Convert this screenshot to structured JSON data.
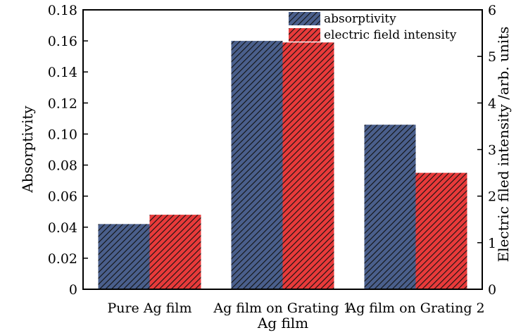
{
  "chart_data": {
    "type": "bar",
    "categories": [
      "Pure Ag film",
      "Ag film on Grating 1",
      "Ag film on Grating 2"
    ],
    "series": [
      {
        "name": "absorptivity",
        "axis": "left",
        "values": [
          0.042,
          0.16,
          0.106
        ],
        "color": "#4a5f8c"
      },
      {
        "name": "electric field intensity",
        "axis": "right",
        "values": [
          1.6,
          5.3,
          2.5
        ],
        "color": "#e83a3a"
      }
    ],
    "xlabel": "Ag film",
    "ylabel": "Absorptivity",
    "y2label": "Electric filed intensity /arb. units",
    "ylim": [
      0,
      0.18
    ],
    "y2lim": [
      0,
      6
    ],
    "yticks": [
      "0",
      "0.02",
      "0.04",
      "0.06",
      "0.08",
      "0.10",
      "0.12",
      "0.14",
      "0.16",
      "0.18"
    ],
    "y2ticks": [
      "0",
      "1",
      "2",
      "3",
      "4",
      "5",
      "6"
    ],
    "legend_position": "top-right",
    "grid": false,
    "hatch": "diagonal"
  }
}
